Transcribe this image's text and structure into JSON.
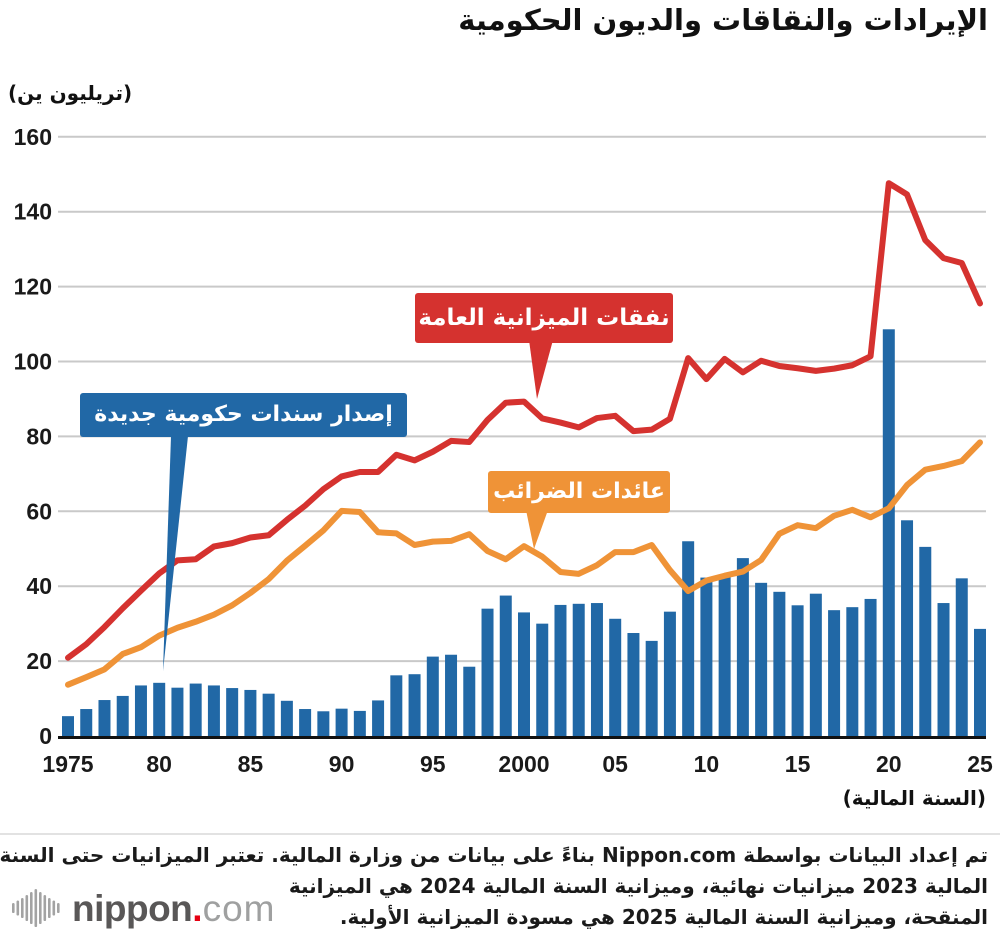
{
  "title": "الإيرادات والنقاقات والديون الحكومية",
  "y_axis_unit": "(تريليون ين)",
  "x_axis_caption": "(السنة المالية)",
  "callouts": {
    "bonds_label": "إصدار سندات حكومية جديدة",
    "expenditures_label": "نفقات الميزانية العامة",
    "tax_label": "عائدات الضرائب"
  },
  "footer": {
    "lines": [
      "تم إعداد البيانات بواسطة Nippon.com بناءً على بيانات من وزارة المالية. تعتبر الميزانيات حتى السنة",
      "المالية 2023 ميزانيات نهائية، وميزانية السنة المالية 2024 هي الميزانية",
      "المنقحة، وميزانية السنة المالية 2025 هي مسودة الميزانية الأولية."
    ]
  },
  "logo": {
    "name": "nippon",
    "dot": ".",
    "tld": "com"
  },
  "colors": {
    "bars": "#2168a6",
    "expenditures": "#d5322f",
    "tax": "#ef9337",
    "grid": "#c9c9c9",
    "axis": "#111111",
    "tick_text": "#1a1a1a",
    "logo_gray": "#595757",
    "logo_light": "#9fa0a0",
    "logo_red": "#e60012",
    "logo_icon": "#a3a3a3"
  },
  "chart_data": {
    "type": "combo-bar-line",
    "x_label": "(السنة المالية)",
    "y_label": "(تريليون ين)",
    "ylim": [
      0,
      160
    ],
    "y_ticks": [
      0,
      20,
      40,
      60,
      80,
      100,
      120,
      140,
      160
    ],
    "grid": true,
    "x": [
      1975,
      1976,
      1977,
      1978,
      1979,
      1980,
      1981,
      1982,
      1983,
      1984,
      1985,
      1986,
      1987,
      1988,
      1989,
      1990,
      1991,
      1992,
      1993,
      1994,
      1995,
      1996,
      1997,
      1998,
      1999,
      2000,
      2001,
      2002,
      2003,
      2004,
      2005,
      2006,
      2007,
      2008,
      2009,
      2010,
      2011,
      2012,
      2013,
      2014,
      2015,
      2016,
      2017,
      2018,
      2019,
      2020,
      2021,
      2022,
      2023,
      2024,
      2025
    ],
    "x_ticks": [
      {
        "year": 1975,
        "label": "1975"
      },
      {
        "year": 1980,
        "label": "80"
      },
      {
        "year": 1985,
        "label": "85"
      },
      {
        "year": 1990,
        "label": "90"
      },
      {
        "year": 1995,
        "label": "95"
      },
      {
        "year": 2000,
        "label": "2000"
      },
      {
        "year": 2005,
        "label": "05"
      },
      {
        "year": 2010,
        "label": "10"
      },
      {
        "year": 2015,
        "label": "15"
      },
      {
        "year": 2020,
        "label": "20"
      },
      {
        "year": 2025,
        "label": "25"
      }
    ],
    "series": [
      {
        "name": "إصدار سندات حكومية جديدة",
        "type": "bar",
        "color": "#2168a6",
        "values": [
          5.3,
          7.2,
          9.6,
          10.7,
          13.5,
          14.2,
          12.9,
          14.0,
          13.5,
          12.8,
          12.3,
          11.3,
          9.4,
          7.2,
          6.6,
          7.3,
          6.7,
          9.5,
          16.2,
          16.5,
          21.2,
          21.7,
          18.5,
          34.0,
          37.5,
          33.0,
          30.0,
          35.0,
          35.3,
          35.5,
          31.3,
          27.5,
          25.4,
          33.2,
          52.0,
          42.3,
          42.8,
          47.5,
          40.9,
          38.5,
          34.9,
          38.0,
          33.6,
          34.4,
          36.6,
          108.6,
          57.6,
          50.5,
          35.5,
          42.1,
          28.6
        ]
      },
      {
        "name": "نفقات الميزانية العامة",
        "type": "line",
        "color": "#d5322f",
        "values": [
          20.9,
          24.5,
          29.1,
          34.1,
          38.8,
          43.4,
          46.9,
          47.2,
          50.6,
          51.5,
          53.0,
          53.6,
          57.7,
          61.5,
          65.9,
          69.3,
          70.5,
          70.5,
          75.1,
          73.6,
          75.9,
          78.8,
          78.5,
          84.4,
          89.0,
          89.3,
          84.8,
          83.7,
          82.4,
          84.9,
          85.5,
          81.4,
          81.8,
          84.7,
          100.9,
          95.3,
          100.7,
          97.1,
          100.2,
          98.8,
          98.2,
          97.5,
          98.1,
          99.0,
          101.4,
          147.6,
          144.6,
          132.4,
          127.6,
          126.3,
          115.5
        ]
      },
      {
        "name": "عائدات الضرائب",
        "type": "line",
        "color": "#ef9337",
        "values": [
          13.7,
          15.7,
          17.8,
          21.9,
          23.7,
          26.8,
          28.9,
          30.5,
          32.4,
          34.9,
          38.2,
          41.9,
          46.8,
          50.8,
          54.9,
          60.1,
          59.8,
          54.4,
          54.1,
          51.0,
          51.9,
          52.1,
          53.9,
          49.4,
          47.2,
          50.7,
          47.9,
          43.8,
          43.3,
          45.6,
          49.1,
          49.1,
          51.0,
          44.3,
          38.7,
          41.5,
          42.8,
          43.9,
          47.0,
          54.0,
          56.3,
          55.5,
          58.8,
          60.4,
          58.4,
          60.8,
          67.0,
          71.1,
          72.1,
          73.4,
          78.4
        ]
      }
    ]
  }
}
